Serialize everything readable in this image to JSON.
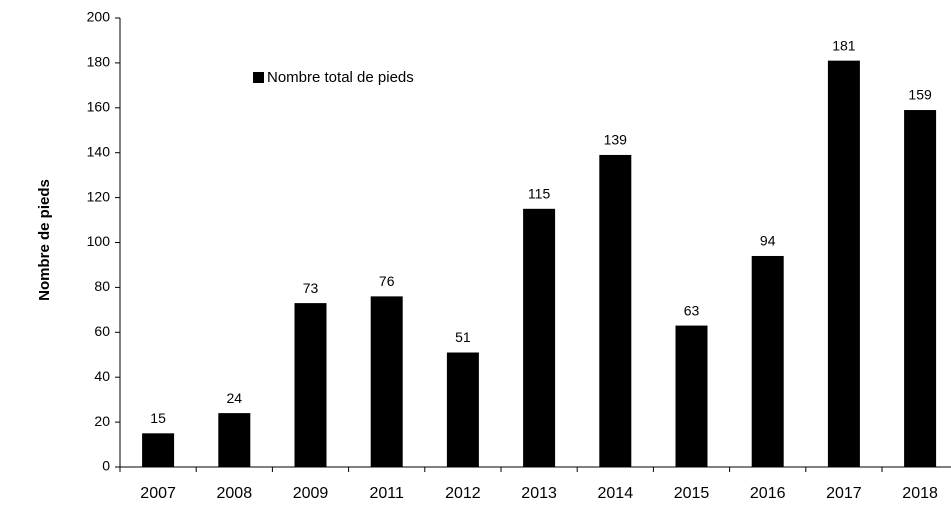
{
  "chart_data": {
    "type": "bar",
    "y_label": "Nombre de pieds",
    "categories": [
      "2007",
      "2008",
      "2009",
      "2011",
      "2012",
      "2013",
      "2014",
      "2015",
      "2016",
      "2017",
      "2018"
    ],
    "series": [
      {
        "name": "Nombre total de pieds",
        "color": "#000000",
        "values": [
          15,
          24,
          73,
          76,
          51,
          115,
          139,
          63,
          94,
          181,
          159
        ]
      }
    ],
    "ylim": [
      0,
      200
    ],
    "yticks": [
      0,
      20,
      40,
      60,
      80,
      100,
      120,
      140,
      160,
      180,
      200
    ],
    "grid": false,
    "legend": "top-left",
    "data_labels": true
  }
}
